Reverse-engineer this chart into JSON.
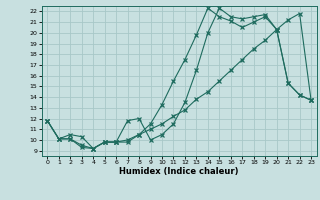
{
  "title": "",
  "xlabel": "Humidex (Indice chaleur)",
  "bg_color": "#c8e0e0",
  "line_color": "#1e6b5e",
  "grid_color": "#a8c8c8",
  "xlim": [
    -0.5,
    23.5
  ],
  "ylim": [
    8.5,
    22.5
  ],
  "xticks": [
    0,
    1,
    2,
    3,
    4,
    5,
    6,
    7,
    8,
    9,
    10,
    11,
    12,
    13,
    14,
    15,
    16,
    17,
    18,
    19,
    20,
    21,
    22,
    23
  ],
  "yticks": [
    9,
    10,
    11,
    12,
    13,
    14,
    15,
    16,
    17,
    18,
    19,
    20,
    21,
    22
  ],
  "line1_x": [
    0,
    1,
    2,
    3,
    4,
    5,
    6,
    7,
    8,
    9,
    10,
    11,
    12,
    13,
    14,
    15,
    16,
    17,
    18,
    19,
    20,
    21,
    22,
    23
  ],
  "line1_y": [
    11.8,
    10.1,
    10.1,
    9.3,
    9.2,
    9.8,
    9.8,
    10.0,
    10.5,
    11.5,
    13.3,
    15.5,
    17.5,
    19.8,
    22.3,
    21.5,
    21.1,
    20.5,
    21.0,
    21.5,
    20.3,
    15.3,
    14.2,
    13.7
  ],
  "line2_x": [
    0,
    1,
    2,
    3,
    4,
    5,
    6,
    7,
    8,
    9,
    10,
    11,
    12,
    13,
    14,
    15,
    16,
    17,
    18,
    19,
    20,
    21,
    22,
    23
  ],
  "line2_y": [
    11.8,
    10.1,
    10.5,
    10.3,
    9.2,
    9.8,
    9.8,
    11.8,
    12.0,
    10.0,
    10.5,
    11.5,
    13.5,
    16.5,
    20.0,
    22.3,
    21.5,
    21.3,
    21.5,
    21.7,
    20.3,
    15.3,
    14.2,
    13.7
  ],
  "line3_x": [
    0,
    1,
    2,
    3,
    4,
    5,
    6,
    7,
    8,
    9,
    10,
    11,
    12,
    13,
    14,
    15,
    16,
    17,
    18,
    19,
    20,
    21,
    22,
    23
  ],
  "line3_y": [
    11.8,
    10.1,
    10.1,
    9.5,
    9.2,
    9.8,
    9.8,
    9.8,
    10.5,
    11.0,
    11.5,
    12.2,
    12.8,
    13.8,
    14.5,
    15.5,
    16.5,
    17.5,
    18.5,
    19.3,
    20.3,
    21.2,
    21.8,
    13.7
  ]
}
